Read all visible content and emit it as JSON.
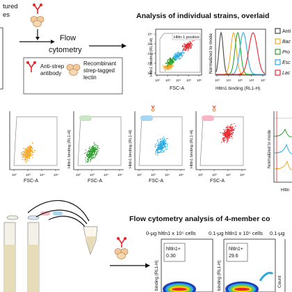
{
  "panel_a": {
    "label_fragment_1": "tured",
    "label_fragment_2": "es",
    "step_label_1": "Flow",
    "step_label_2": "cytometry",
    "legend_antibody_1": "Anti-strep",
    "legend_antibody_2": "antibody",
    "legend_lectin_1": "Recombinant",
    "legend_lectin_2": "strep-tagged",
    "legend_lectin_3": "lectin"
  },
  "panel_b": {
    "title": "Analysis of individual strains, overlaid",
    "scatter_gate_label": "Hltln-1 positive",
    "scatter_ylabel": "Hltln1 binding (RL1-H)",
    "scatter_xlabel": "FSC-A",
    "hist_ylabel": "Normalized to mode",
    "hist_xlabel": "Hltln1 binding (RL1-H)",
    "tick_labels": [
      "10¹",
      "10²",
      "10³",
      "10⁴",
      "10⁵",
      "10⁶",
      "10⁷"
    ],
    "hist_ticks": [
      "10³",
      "10⁴",
      "10⁵",
      "10⁶",
      "10⁷"
    ],
    "legend": [
      "Anti",
      "Bac",
      "Pro",
      "Esc",
      "Lac"
    ],
    "colors": {
      "orange": "#f5a623",
      "green": "#2ca02c",
      "blue": "#29abe2",
      "red": "#e8262c"
    }
  },
  "panel_c": {
    "ylabel": "Hltln1 binding (RL1-H)",
    "xlabel": "FSC-A",
    "partial_xlabel": "FSC-A",
    "right_ylabel": "Normalized to mode",
    "right_xlabel": "Hltln"
  },
  "panel_d": {
    "title": "Flow cytometry analysis of 4-member co",
    "conditions": [
      "0-μg hltln1 x 10⁵ cells",
      "0.1-μg hltln1 x 10⁵ cells",
      "0.1-μg"
    ],
    "gate_name": "hltln1+",
    "gate_values": [
      "0.30",
      "29.6"
    ],
    "ylabel": "binding (RL1-H)",
    "count_label": "Count"
  }
}
